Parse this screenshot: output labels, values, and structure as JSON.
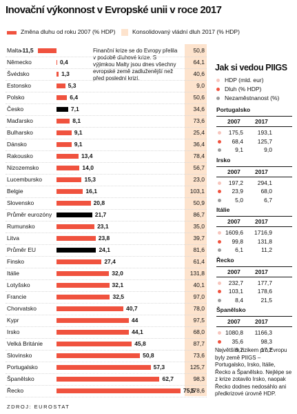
{
  "chart_data": {
    "type": "bar",
    "orientation": "horizontal",
    "title": "Inovační výkonnost v Evropské unii v roce 2017",
    "source": "ZDROJ: EUROSTAT",
    "annotation": "Finanční krize se do Evropy přelila v podobě dluhové krize. S výjimkou Malty jsou dnes všechny evropské země zadluženější než před poslední krizí.",
    "categories": [
      "Malta",
      "Německo",
      "Švédsko",
      "Estonsko",
      "Polsko",
      "Česko",
      "Maďarsko",
      "Bulharsko",
      "Dánsko",
      "Rakousko",
      "Nizozemsko",
      "Lucembursko",
      "Belgie",
      "Slovensko",
      "Průměr eurozóny",
      "Rumunsko",
      "Litva",
      "Průměr EU",
      "Finsko",
      "Itálie",
      "Lotyšsko",
      "Francie",
      "Chorvatsko",
      "Kypr",
      "Irsko",
      "Velká Británie",
      "Slovinsko",
      "Portugalsko",
      "Španělsko",
      "Řecko"
    ],
    "series": [
      {
        "name": "Změna dluhu od roku 2007 (% HDP)",
        "color": "#f0523e",
        "colors": [
          "#f0523e",
          "#f0523e",
          "#f0523e",
          "#f0523e",
          "#f0523e",
          "#000000",
          "#f0523e",
          "#f0523e",
          "#f0523e",
          "#f0523e",
          "#f0523e",
          "#f0523e",
          "#f0523e",
          "#f0523e",
          "#000000",
          "#f0523e",
          "#f0523e",
          "#000000",
          "#f0523e",
          "#f0523e",
          "#f0523e",
          "#f0523e",
          "#f0523e",
          "#f0523e",
          "#f0523e",
          "#f0523e",
          "#f0523e",
          "#f0523e",
          "#f0523e",
          "#f0523e"
        ],
        "values": [
          -11.5,
          0.4,
          1.3,
          5.3,
          6.4,
          7.1,
          8.1,
          9.1,
          9.1,
          13.4,
          14.0,
          15.3,
          16.1,
          20.8,
          21.7,
          23.1,
          23.8,
          24.1,
          27.4,
          32.0,
          32.1,
          32.5,
          40.7,
          44,
          44.1,
          45.8,
          50.8,
          57.3,
          62.7,
          75.5
        ],
        "value_labels": [
          "-11,5",
          "0,4",
          "1,3",
          "5,3",
          "6,4",
          "7,1",
          "8,1",
          "9,1",
          "9,1",
          "13,4",
          "14,0",
          "15,3",
          "16,1",
          "20,8",
          "21,7",
          "23,1",
          "23,8",
          "24,1",
          "27,4",
          "32,0",
          "32,1",
          "32,5",
          "40,7",
          "44",
          "44,1",
          "45,8",
          "50,8",
          "57,3",
          "62,7",
          "75,5"
        ]
      },
      {
        "name": "Konsolidovaný vládní dluh 2017 (% HDP)",
        "color": "#fde3cd",
        "values": [
          50.8,
          64.1,
          40.6,
          9.0,
          50.6,
          34.6,
          73.6,
          25.4,
          36.4,
          78.4,
          56.7,
          23.0,
          103.1,
          50.9,
          86.7,
          35.0,
          39.7,
          81.6,
          61.4,
          131.8,
          40.1,
          97.0,
          78.0,
          97.5,
          68.0,
          87.7,
          73.6,
          125.7,
          98.3,
          178.6
        ],
        "value_labels": [
          "50,8",
          "64,1",
          "40,6",
          "9,0",
          "50,6",
          "34,6",
          "73,6",
          "25,4",
          "36,4",
          "78,4",
          "56,7",
          "23,0",
          "103,1",
          "50,9",
          "86,7",
          "35,0",
          "39,7",
          "81,6",
          "61,4",
          "131,8",
          "40,1",
          "97,0",
          "78,0",
          "97,5",
          "68,0",
          "87,7",
          "73,6",
          "125,7",
          "98,3",
          "178,6"
        ]
      }
    ]
  },
  "piigs": {
    "title": "Jak si vedou PIIGS",
    "legend": [
      {
        "label": "HDP (mld. eur)",
        "color": "#f7c5bd"
      },
      {
        "label": "Dluh (% HDP)",
        "color": "#f0523e"
      },
      {
        "label": "Nezaměstnanost (%)",
        "color": "#9a9a9a"
      }
    ],
    "countries": [
      {
        "name": "Portugalsko",
        "header": [
          "2007",
          "2017"
        ],
        "rows": [
          [
            "175,5",
            "193,1"
          ],
          [
            "68,4",
            "125,7"
          ],
          [
            "9,1",
            "9,0"
          ]
        ]
      },
      {
        "name": "Irsko",
        "header": [
          "2007",
          "2017"
        ],
        "rows": [
          [
            "197,2",
            "294,1"
          ],
          [
            "23,9",
            "68,0"
          ],
          [
            "5,0",
            "6,7"
          ]
        ]
      },
      {
        "name": "Itálie",
        "header": [
          "2007",
          "2017"
        ],
        "rows": [
          [
            "1609,6",
            "1716,9"
          ],
          [
            "99,8",
            "131,8"
          ],
          [
            "6,1",
            "11,2"
          ]
        ]
      },
      {
        "name": "Řecko",
        "header": [
          "2007",
          "2017"
        ],
        "rows": [
          [
            "232,7",
            "177,7"
          ],
          [
            "103,1",
            "178,6"
          ],
          [
            "8,4",
            "21,5"
          ]
        ]
      },
      {
        "name": "Španělsko",
        "header": [
          "2007",
          "2017"
        ],
        "rows": [
          [
            "1080,8",
            "1166,3"
          ],
          [
            "35,6",
            "98,3"
          ],
          [
            "8,2",
            "17,2"
          ]
        ]
      }
    ],
    "note": "Největším rizikem pro Evropu byly země PIIGS – Portugalsko, Irsko, Itálie, Řecko a Španělsko. Nejlépe se z krize zotavilo Irsko, naopak Řecko dodnes nedosáhlo ani předkrizové úrovně HDP."
  }
}
